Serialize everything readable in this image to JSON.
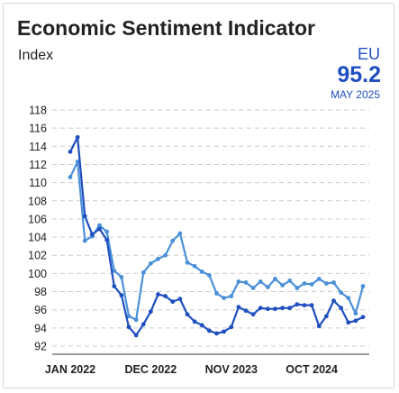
{
  "header": {
    "title": "Economic Sentiment Indicator",
    "unit": "Index",
    "region": "EU",
    "latest_value": "95.2",
    "latest_date": "MAY 2025"
  },
  "colors": {
    "dark_series": "#1f4fbf",
    "light_series": "#4a90d9",
    "text": "#222222",
    "grid": "#cccccc"
  },
  "chart_data": {
    "type": "line",
    "title": "Economic Sentiment Indicator",
    "ylabel": "Index",
    "xlabel": "",
    "ylim": [
      92,
      118
    ],
    "yticks": [
      92,
      94,
      96,
      98,
      100,
      102,
      104,
      106,
      108,
      110,
      112,
      114,
      116,
      118
    ],
    "x_tick_labels": [
      {
        "label": "JAN 2022",
        "index": 0
      },
      {
        "label": "DEC 2022",
        "index": 11
      },
      {
        "label": "NOV 2023",
        "index": 22
      },
      {
        "label": "OCT 2024",
        "index": 33
      }
    ],
    "x": [
      "2022-01",
      "2022-02",
      "2022-03",
      "2022-04",
      "2022-05",
      "2022-06",
      "2022-07",
      "2022-08",
      "2022-09",
      "2022-10",
      "2022-11",
      "2022-12",
      "2023-01",
      "2023-02",
      "2023-03",
      "2023-04",
      "2023-05",
      "2023-06",
      "2023-07",
      "2023-08",
      "2023-09",
      "2023-10",
      "2023-11",
      "2023-12",
      "2024-01",
      "2024-02",
      "2024-03",
      "2024-04",
      "2024-05",
      "2024-06",
      "2024-07",
      "2024-08",
      "2024-09",
      "2024-10",
      "2024-11",
      "2024-12",
      "2025-01",
      "2025-02",
      "2025-03",
      "2025-04",
      "2025-05"
    ],
    "grid": true,
    "series": [
      {
        "color": "#1f4fbf",
        "values": [
          113.4,
          115.0,
          106.3,
          104.3,
          104.9,
          103.7,
          98.6,
          97.6,
          94.1,
          93.2,
          94.4,
          95.8,
          97.7,
          97.5,
          96.9,
          97.2,
          95.5,
          94.7,
          94.3,
          93.7,
          93.4,
          93.6,
          94.1,
          96.3,
          95.9,
          95.5,
          96.2,
          96.1,
          96.1,
          96.2,
          96.2,
          96.6,
          96.5,
          96.5,
          94.2,
          95.3,
          97.0,
          96.2,
          94.6,
          94.8,
          95.2
        ]
      },
      {
        "color": "#4a90d9",
        "values": [
          110.6,
          112.3,
          103.6,
          104.1,
          105.3,
          104.6,
          100.3,
          99.6,
          95.3,
          94.9,
          100.1,
          101.1,
          101.6,
          102.0,
          103.6,
          104.4,
          101.2,
          100.8,
          100.2,
          99.8,
          97.8,
          97.3,
          97.5,
          99.1,
          99.0,
          98.4,
          99.1,
          98.5,
          99.4,
          98.7,
          99.2,
          98.4,
          98.9,
          98.8,
          99.4,
          98.9,
          99.0,
          97.9,
          97.3,
          95.6,
          98.6
        ]
      }
    ]
  }
}
